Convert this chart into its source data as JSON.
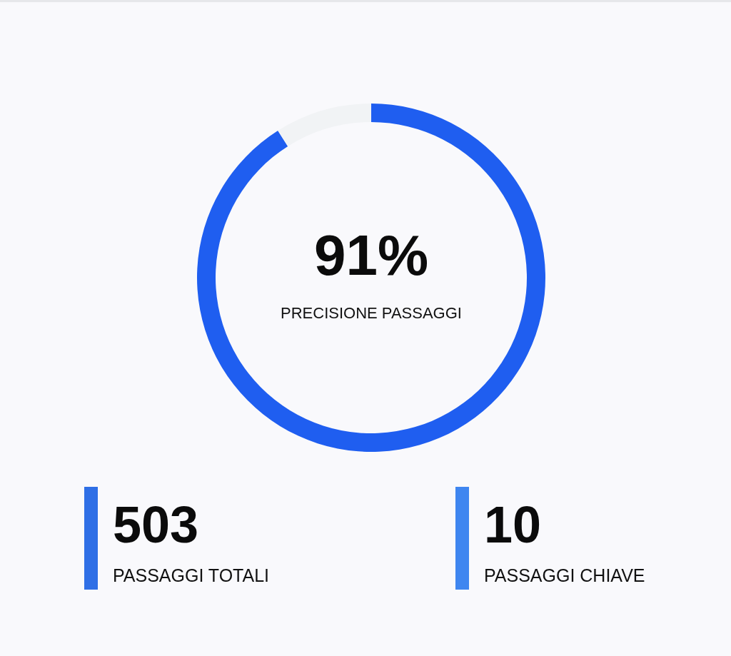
{
  "chart_data": [
    {
      "type": "donut",
      "title": "PRECISIONE PASSAGGI",
      "categories": [
        null,
        null
      ],
      "values": [
        91,
        9
      ],
      "colors": [
        "#1f5ef0",
        "#f1f3f5"
      ],
      "value_labels": [
        "91%",
        null
      ]
    },
    {
      "type": "other",
      "annotations": [
        "503",
        "PASSAGGI TOTALI",
        "10",
        "PASSAGGI CHIAVE"
      ]
    }
  ]
}
